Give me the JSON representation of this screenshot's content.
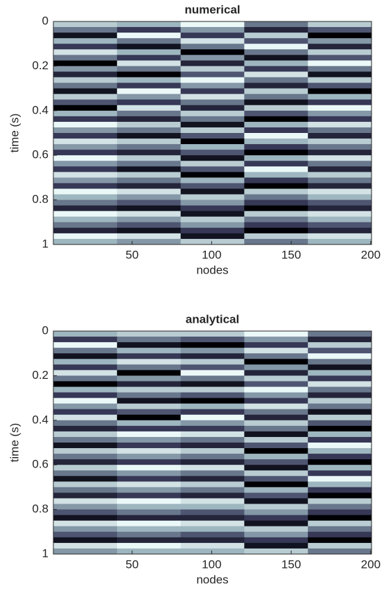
{
  "chart_data": [
    {
      "type": "heatmap",
      "title": "numerical",
      "x_label": "nodes",
      "y_label": "time (s)",
      "colormap": "bone",
      "xlim": [
        0.5,
        200.5
      ],
      "ylim": [
        0,
        1
      ],
      "y_reversed": true,
      "xticks": [
        50,
        100,
        150,
        200
      ],
      "yticks": [
        0,
        0.2,
        0.4,
        0.6,
        0.8,
        1
      ],
      "x": [
        20.5,
        60.5,
        100.5,
        140.5,
        180.5
      ],
      "y": [
        0.0125,
        0.0375,
        0.0625,
        0.0875,
        0.1125,
        0.1375,
        0.1625,
        0.1875,
        0.2125,
        0.2375,
        0.2625,
        0.2875,
        0.3125,
        0.3375,
        0.3625,
        0.3875,
        0.4125,
        0.4375,
        0.4625,
        0.4875,
        0.5125,
        0.5375,
        0.5625,
        0.5875,
        0.6125,
        0.6375,
        0.6625,
        0.6875,
        0.7125,
        0.7375,
        0.7625,
        0.7875,
        0.8125,
        0.8375,
        0.8625,
        0.8875,
        0.9125,
        0.9375,
        0.9625,
        0.9875
      ],
      "z": [
        [
          0.8,
          0.7,
          1.0,
          0.5,
          0.8
        ],
        [
          0.5,
          0.3,
          0.6,
          0.2,
          0.4
        ],
        [
          0.1,
          1.0,
          0.3,
          0.8,
          0.0
        ],
        [
          0.7,
          0.5,
          0.9,
          0.4,
          0.6
        ],
        [
          0.3,
          0.1,
          0.5,
          1.0,
          0.2
        ],
        [
          0.9,
          0.7,
          0.0,
          0.5,
          0.8
        ],
        [
          0.5,
          0.3,
          0.6,
          0.1,
          0.4
        ],
        [
          0.0,
          0.9,
          0.2,
          0.7,
          1.0
        ],
        [
          0.6,
          0.5,
          0.8,
          0.3,
          0.5
        ],
        [
          0.2,
          0.0,
          0.4,
          0.9,
          0.1
        ],
        [
          0.8,
          0.7,
          1.0,
          0.5,
          0.8
        ],
        [
          0.5,
          0.3,
          0.6,
          0.2,
          0.4
        ],
        [
          0.1,
          1.0,
          0.3,
          0.8,
          0.0
        ],
        [
          0.8,
          0.6,
          0.9,
          0.5,
          0.7
        ],
        [
          0.4,
          0.3,
          0.5,
          0.1,
          0.3
        ],
        [
          0.0,
          0.9,
          0.2,
          0.8,
          1.0
        ],
        [
          0.7,
          0.5,
          0.8,
          0.4,
          0.6
        ],
        [
          0.3,
          0.2,
          0.5,
          0.0,
          0.3
        ],
        [
          1.0,
          0.8,
          0.1,
          0.7,
          0.9
        ],
        [
          0.6,
          0.5,
          0.8,
          0.3,
          0.5
        ],
        [
          0.3,
          0.1,
          0.4,
          1.0,
          0.2
        ],
        [
          0.9,
          0.8,
          0.0,
          0.7,
          0.8
        ],
        [
          0.6,
          0.5,
          0.7,
          0.3,
          0.5
        ],
        [
          0.3,
          0.2,
          0.4,
          0.0,
          0.2
        ],
        [
          1.0,
          0.8,
          0.1,
          0.7,
          0.9
        ],
        [
          0.6,
          0.5,
          0.8,
          0.3,
          0.5
        ],
        [
          0.3,
          0.1,
          0.4,
          1.0,
          0.2
        ],
        [
          0.9,
          0.8,
          0.0,
          0.7,
          0.8
        ],
        [
          0.6,
          0.5,
          0.7,
          0.3,
          0.5
        ],
        [
          0.3,
          0.2,
          0.4,
          0.0,
          0.2
        ],
        [
          1.0,
          0.9,
          0.1,
          0.8,
          0.9
        ],
        [
          0.7,
          0.6,
          0.8,
          0.5,
          0.7
        ],
        [
          0.5,
          0.4,
          0.6,
          0.3,
          0.4
        ],
        [
          0.2,
          0.1,
          0.3,
          0.0,
          0.2
        ],
        [
          1.0,
          0.9,
          0.1,
          0.8,
          0.9
        ],
        [
          0.7,
          0.6,
          0.8,
          0.5,
          0.7
        ],
        [
          0.5,
          0.4,
          0.6,
          0.3,
          0.4
        ],
        [
          0.2,
          0.1,
          0.3,
          0.0,
          0.2
        ],
        [
          1.0,
          0.9,
          0.1,
          0.8,
          0.9
        ],
        [
          0.7,
          0.6,
          0.8,
          0.5,
          0.7
        ]
      ]
    },
    {
      "type": "heatmap",
      "title": "analytical",
      "x_label": "nodes",
      "y_label": "time (s)",
      "colormap": "bone",
      "xlim": [
        0.5,
        200.5
      ],
      "ylim": [
        0,
        1
      ],
      "y_reversed": true,
      "xticks": [
        50,
        100,
        150,
        200
      ],
      "yticks": [
        0,
        0.2,
        0.4,
        0.6,
        0.8,
        1
      ],
      "x": [
        20.5,
        60.5,
        100.5,
        140.5,
        180.5
      ],
      "y": [
        0.0125,
        0.0375,
        0.0625,
        0.0875,
        0.1125,
        0.1375,
        0.1625,
        0.1875,
        0.2125,
        0.2375,
        0.2625,
        0.2875,
        0.3125,
        0.3375,
        0.3625,
        0.3875,
        0.4125,
        0.4375,
        0.4625,
        0.4875,
        0.5125,
        0.5375,
        0.5625,
        0.5875,
        0.6125,
        0.6375,
        0.6625,
        0.6875,
        0.7125,
        0.7375,
        0.7625,
        0.7875,
        0.8125,
        0.8375,
        0.8625,
        0.8875,
        0.9125,
        0.9375,
        0.9625,
        0.9875
      ],
      "z": [
        [
          0.7,
          0.8,
          0.8,
          1.0,
          0.5
        ],
        [
          0.3,
          0.5,
          0.4,
          0.6,
          0.2
        ],
        [
          1.0,
          0.1,
          0.0,
          0.3,
          0.8
        ],
        [
          0.5,
          0.7,
          0.6,
          0.9,
          0.4
        ],
        [
          0.1,
          0.3,
          0.2,
          0.5,
          1.0
        ],
        [
          0.7,
          0.9,
          0.8,
          0.0,
          0.5
        ],
        [
          0.3,
          0.5,
          0.4,
          0.6,
          0.1
        ],
        [
          0.9,
          0.0,
          1.0,
          0.2,
          0.7
        ],
        [
          0.5,
          0.6,
          0.5,
          0.8,
          0.3
        ],
        [
          0.0,
          0.2,
          0.1,
          0.4,
          0.9
        ],
        [
          0.7,
          0.8,
          0.8,
          1.0,
          0.5
        ],
        [
          0.3,
          0.5,
          0.4,
          0.6,
          0.2
        ],
        [
          1.0,
          0.1,
          0.0,
          0.3,
          0.8
        ],
        [
          0.6,
          0.8,
          0.7,
          0.9,
          0.5
        ],
        [
          0.3,
          0.4,
          0.3,
          0.5,
          0.1
        ],
        [
          0.9,
          0.0,
          1.0,
          0.2,
          0.8
        ],
        [
          0.5,
          0.7,
          0.6,
          0.8,
          0.4
        ],
        [
          0.2,
          0.3,
          0.3,
          0.5,
          0.0
        ],
        [
          0.8,
          1.0,
          0.9,
          0.1,
          0.7
        ],
        [
          0.5,
          0.6,
          0.5,
          0.8,
          0.3
        ],
        [
          0.1,
          0.3,
          0.2,
          0.4,
          1.0
        ],
        [
          0.8,
          0.9,
          0.8,
          0.0,
          0.7
        ],
        [
          0.5,
          0.6,
          0.5,
          0.7,
          0.3
        ],
        [
          0.2,
          0.3,
          0.2,
          0.4,
          0.0
        ],
        [
          0.8,
          1.0,
          0.9,
          0.1,
          0.7
        ],
        [
          0.5,
          0.6,
          0.5,
          0.8,
          0.3
        ],
        [
          0.1,
          0.3,
          0.2,
          0.4,
          1.0
        ],
        [
          0.8,
          0.9,
          0.8,
          0.0,
          0.7
        ],
        [
          0.5,
          0.6,
          0.5,
          0.7,
          0.3
        ],
        [
          0.2,
          0.3,
          0.2,
          0.4,
          0.0
        ],
        [
          0.9,
          1.0,
          0.9,
          0.1,
          0.8
        ],
        [
          0.6,
          0.7,
          0.7,
          0.8,
          0.5
        ],
        [
          0.4,
          0.5,
          0.4,
          0.6,
          0.3
        ],
        [
          0.1,
          0.2,
          0.2,
          0.3,
          0.0
        ],
        [
          0.9,
          1.0,
          0.9,
          0.1,
          0.8
        ],
        [
          0.6,
          0.7,
          0.7,
          0.8,
          0.5
        ],
        [
          0.4,
          0.5,
          0.4,
          0.6,
          0.3
        ],
        [
          0.1,
          0.2,
          0.2,
          0.3,
          0.0
        ],
        [
          0.9,
          1.0,
          0.9,
          0.1,
          0.8
        ],
        [
          0.6,
          0.7,
          0.7,
          0.8,
          0.5
        ]
      ]
    }
  ]
}
